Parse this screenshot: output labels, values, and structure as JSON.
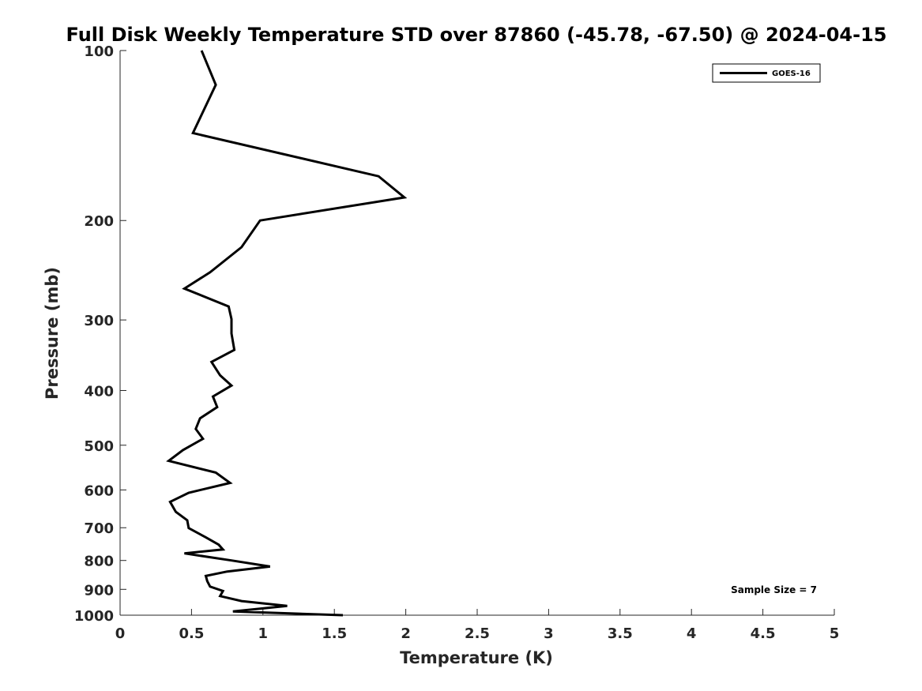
{
  "chart_data": {
    "type": "line",
    "title": "Full Disk Weekly Temperature STD over 87860 (-45.78, -67.50) @ 2024-04-15",
    "xlabel": "Temperature (K)",
    "ylabel": "Pressure (mb)",
    "xlim": [
      0,
      5
    ],
    "ylim": [
      1000,
      100
    ],
    "y_scale": "log",
    "y_reversed": true,
    "xticks": [
      0,
      0.5,
      1,
      1.5,
      2,
      2.5,
      3,
      3.5,
      4,
      4.5,
      5
    ],
    "xtick_labels": [
      "0",
      "0.5",
      "1",
      "1.5",
      "2",
      "2.5",
      "3",
      "3.5",
      "4",
      "4.5",
      "5"
    ],
    "yticks": [
      100,
      200,
      300,
      400,
      500,
      600,
      700,
      800,
      900,
      1000
    ],
    "ytick_labels": [
      "100",
      "200",
      "300",
      "400",
      "500",
      "600",
      "700",
      "800",
      "900",
      "1000"
    ],
    "grid": false,
    "legend_position": "top-right",
    "annotation": "Sample Size = 7",
    "line_color": "#000000",
    "series": [
      {
        "name": "GOES-16",
        "x": [
          0.57,
          0.67,
          0.51,
          1.81,
          1.99,
          0.98,
          0.85,
          0.63,
          0.45,
          0.76,
          0.78,
          0.78,
          0.8,
          0.64,
          0.7,
          0.78,
          0.65,
          0.68,
          0.56,
          0.53,
          0.58,
          0.44,
          0.34,
          0.67,
          0.77,
          0.48,
          0.35,
          0.39,
          0.47,
          0.48,
          0.6,
          0.69,
          0.72,
          0.45,
          0.78,
          1.05,
          0.75,
          0.6,
          0.61,
          0.63,
          0.72,
          0.7,
          0.85,
          1.17,
          0.79,
          1.56
        ],
        "y": [
          100,
          115,
          140,
          167,
          182,
          200,
          223,
          247,
          264,
          284,
          299,
          317,
          339,
          356,
          376,
          392,
          410,
          428,
          448,
          468,
          487,
          510,
          533,
          559,
          583,
          607,
          630,
          656,
          679,
          701,
          728,
          750,
          765,
          777,
          800,
          820,
          837,
          852,
          870,
          890,
          906,
          925,
          944,
          963,
          985,
          1000
        ]
      }
    ]
  }
}
